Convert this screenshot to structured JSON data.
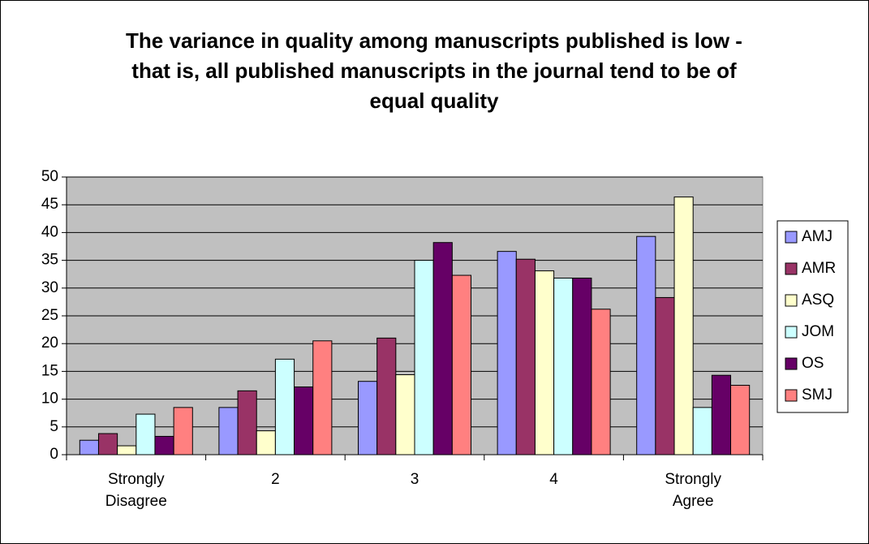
{
  "chart_data": {
    "type": "bar",
    "title": "The variance in quality among manuscripts published is low - that is, all published manuscripts in the journal tend to be of equal quality",
    "categories": [
      "Strongly Disagree",
      "2",
      "3",
      "4",
      "Strongly Agree"
    ],
    "series": [
      {
        "name": "AMJ",
        "color": "#9999ff",
        "values": [
          2.6,
          8.5,
          13.2,
          36.6,
          39.3
        ]
      },
      {
        "name": "AMR",
        "color": "#993366",
        "values": [
          3.8,
          11.5,
          21,
          35.2,
          28.3
        ]
      },
      {
        "name": "ASQ",
        "color": "#ffffcc",
        "values": [
          1.6,
          4.3,
          14.4,
          33.1,
          46.4
        ]
      },
      {
        "name": "JOM",
        "color": "#ccffff",
        "values": [
          7.3,
          17.2,
          35,
          31.8,
          8.5
        ]
      },
      {
        "name": "OS",
        "color": "#660066",
        "values": [
          3.3,
          12.2,
          38.2,
          31.8,
          14.3
        ]
      },
      {
        "name": "SMJ",
        "color": "#ff8080",
        "values": [
          8.5,
          20.5,
          32.3,
          26.2,
          12.5
        ]
      }
    ],
    "ylim": [
      0,
      50
    ],
    "yticks": [
      0,
      5,
      10,
      15,
      20,
      25,
      30,
      35,
      40,
      45,
      50
    ],
    "grid": true,
    "legend": "right",
    "plot_background": "#c0c0c0"
  }
}
